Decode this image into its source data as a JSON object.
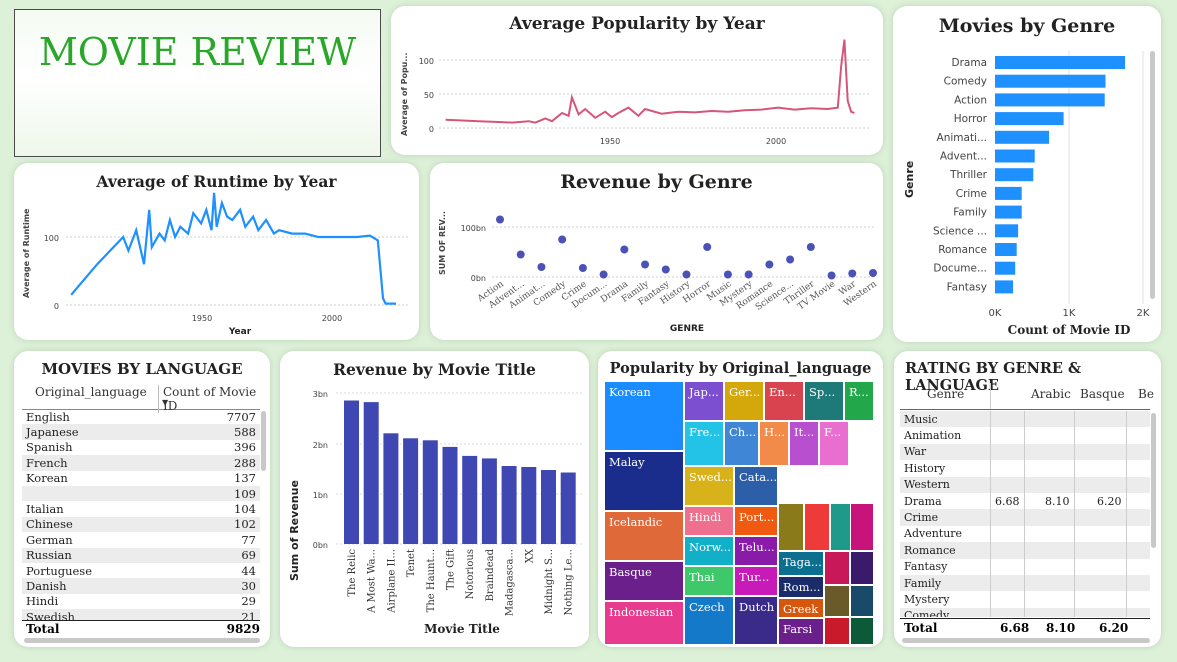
{
  "header": {
    "title": "MOVIE REVIEW"
  },
  "colors": {
    "accent_blue": "#1e90ff",
    "pop_line": "#d6557a",
    "dot": "#4a52b8",
    "bar_dark": "#3f48b2",
    "title_green": "#2aa62a"
  },
  "charts": {
    "popularity_year": {
      "type": "line",
      "title": "Average Popularity by Year",
      "ylabel": "Average of Popu...",
      "yticks": [
        "100",
        "50",
        "0"
      ],
      "xticks": [
        "1950",
        "2000"
      ],
      "chart_data": {
        "type": "line",
        "xlim": [
          1898,
          2028
        ],
        "ylim": [
          0,
          135
        ],
        "x": [
          1900,
          1905,
          1910,
          1915,
          1920,
          1925,
          1927,
          1930,
          1932,
          1935,
          1937,
          1938,
          1940,
          1942,
          1945,
          1948,
          1950,
          1952,
          1955,
          1958,
          1960,
          1965,
          1970,
          1975,
          1980,
          1985,
          1990,
          1995,
          2000,
          2005,
          2010,
          2015,
          2018,
          2019,
          2020,
          2021,
          2022,
          2023
        ],
        "y": [
          12,
          11,
          10,
          9,
          8,
          10,
          8,
          14,
          10,
          22,
          18,
          45,
          20,
          28,
          15,
          24,
          16,
          22,
          30,
          18,
          28,
          21,
          24,
          23,
          25,
          24,
          26,
          27,
          30,
          27,
          29,
          28,
          30,
          90,
          130,
          40,
          24,
          22
        ]
      }
    },
    "runtime_year": {
      "type": "line",
      "title": "Average of Runtime by Year",
      "ylabel": "Average of Runtime",
      "xlabel": "Year",
      "yticks": [
        "100",
        "0"
      ],
      "xticks": [
        "1950",
        "2000"
      ],
      "chart_data": {
        "type": "line",
        "xlim": [
          1898,
          2030
        ],
        "ylim": [
          0,
          170
        ],
        "x": [
          1900,
          1910,
          1920,
          1922,
          1925,
          1928,
          1930,
          1931,
          1934,
          1936,
          1938,
          1940,
          1942,
          1945,
          1947,
          1950,
          1952,
          1954,
          1955,
          1956,
          1958,
          1960,
          1962,
          1965,
          1967,
          1970,
          1972,
          1975,
          1978,
          1980,
          1985,
          1990,
          1995,
          2000,
          2005,
          2010,
          2015,
          2018,
          2020,
          2021,
          2022,
          2025
        ],
        "y": [
          15,
          60,
          100,
          80,
          110,
          60,
          140,
          85,
          105,
          95,
          125,
          100,
          115,
          105,
          135,
          120,
          140,
          110,
          165,
          115,
          150,
          130,
          125,
          140,
          115,
          130,
          110,
          125,
          105,
          110,
          105,
          105,
          100,
          100,
          100,
          100,
          102,
          95,
          10,
          2,
          2,
          2
        ]
      }
    },
    "revenue_genre": {
      "type": "scatter",
      "title": "Revenue by Genre",
      "ylabel": "SUM OF REV...",
      "xlabel": "GENRE",
      "yticks": [
        "100bn",
        "0bn"
      ],
      "chart_data": {
        "type": "scatter",
        "ylim": [
          0,
          120
        ],
        "categories": [
          "Action",
          "Advent...",
          "Animat...",
          "Comedy",
          "Crime",
          "Docum...",
          "Drama",
          "Family",
          "Fantasy",
          "History",
          "Horror",
          "Music",
          "Mystery",
          "Romance",
          "Science...",
          "Thriller",
          "TV Movie",
          "War",
          "Western"
        ],
        "values": [
          115,
          45,
          20,
          75,
          18,
          5,
          55,
          25,
          15,
          5,
          60,
          5,
          5,
          25,
          35,
          60,
          3,
          7,
          8
        ]
      }
    },
    "movies_genre": {
      "type": "bar",
      "title": "Movies by Genre",
      "ylabel": "Genre",
      "xlabel": "Count of Movie ID",
      "xticks": [
        "0K",
        "1K",
        "2K"
      ],
      "chart_data": {
        "type": "bar",
        "xlim": [
          0,
          2050
        ],
        "categories": [
          "Drama",
          "Comedy",
          "Action",
          "Horror",
          "Animati...",
          "Advent...",
          "Thriller",
          "Crime",
          "Family",
          "Science ...",
          "Romance",
          "Docume...",
          "Fantasy"
        ],
        "values": [
          1800,
          1530,
          1520,
          950,
          750,
          550,
          530,
          370,
          370,
          320,
          300,
          280,
          250
        ]
      }
    },
    "revenue_title": {
      "type": "bar",
      "title": "Revenue by Movie Title",
      "ylabel": "Sum of Revenue",
      "xlabel": "Movie Title",
      "yticks": [
        "3bn",
        "2bn",
        "1bn",
        "0bn"
      ],
      "chart_data": {
        "type": "bar",
        "ylim": [
          0,
          3
        ],
        "categories": [
          "The Relic",
          "A Most Wa...",
          "Airplane II...",
          "Tenet",
          "The Haunt...",
          "The Gift",
          "Notorious",
          "Braindead",
          "Madagasca...",
          "XX",
          "Midnight S...",
          "Nothing Le..."
        ],
        "values": [
          2.85,
          2.82,
          2.2,
          2.1,
          2.06,
          1.93,
          1.75,
          1.7,
          1.55,
          1.53,
          1.47,
          1.42
        ]
      }
    }
  },
  "language_table": {
    "title": "MOVIES BY LANGUAGE",
    "headers": [
      "Original_language",
      "Count of Movie ID"
    ],
    "rows": [
      [
        "English",
        "7707"
      ],
      [
        "Japanese",
        "588"
      ],
      [
        "Spanish",
        "396"
      ],
      [
        "French",
        "288"
      ],
      [
        "Korean",
        "137"
      ],
      [
        "",
        "109"
      ],
      [
        "Italian",
        "104"
      ],
      [
        "Chinese",
        "102"
      ],
      [
        "German",
        "77"
      ],
      [
        "Russian",
        "69"
      ],
      [
        "Portuguese",
        "44"
      ],
      [
        "Danish",
        "30"
      ],
      [
        "Hindi",
        "29"
      ],
      [
        "Swedish",
        "21"
      ]
    ],
    "total_label": "Total",
    "total_value": "9829"
  },
  "treemap": {
    "title": "Popularity by Original_language",
    "cells": [
      {
        "label": "Korean",
        "color": "#1a8cff"
      },
      {
        "label": "Jap...",
        "color": "#7b4fcf"
      },
      {
        "label": "Ger...",
        "color": "#d4a70a"
      },
      {
        "label": "En...",
        "color": "#d9434f"
      },
      {
        "label": "Sp...",
        "color": "#1e7a78"
      },
      {
        "label": "R...",
        "color": "#22a84a"
      },
      {
        "label": "Malay",
        "color": "#1a2d8c"
      },
      {
        "label": "Fre...",
        "color": "#22c3e6"
      },
      {
        "label": "Ch...",
        "color": "#3f86d6"
      },
      {
        "label": "H...",
        "color": "#f28b4a"
      },
      {
        "label": "It...",
        "color": "#b84fcf"
      },
      {
        "label": "F...",
        "color": "#e86fd0"
      },
      {
        "label": "Icelandic",
        "color": "#e0693a"
      },
      {
        "label": "Swed...",
        "color": "#d8b21a"
      },
      {
        "label": "Cata...",
        "color": "#2d5fa8"
      },
      {
        "label": "Hindi",
        "color": "#ef6f8f"
      },
      {
        "label": "Port...",
        "color": "#ef5a10"
      },
      {
        "label": "Basque",
        "color": "#6a1f8a"
      },
      {
        "label": "Norw...",
        "color": "#12b0c8"
      },
      {
        "label": "Telu...",
        "color": "#8a1aa8"
      },
      {
        "label": "Thai",
        "color": "#3ec86a"
      },
      {
        "label": "Tur...",
        "color": "#c71ab8"
      },
      {
        "label": "Indonesian",
        "color": "#e83a8f"
      },
      {
        "label": "Czech",
        "color": "#1479c8"
      },
      {
        "label": "Dutch",
        "color": "#3a2a8a"
      },
      {
        "label": "Taga...",
        "color": "#0d6f8f"
      },
      {
        "label": "Rom...",
        "color": "#1a2d6a"
      },
      {
        "label": "Greek",
        "color": "#d7560e"
      },
      {
        "label": "Farsi",
        "color": "#6a1f8a"
      },
      {
        "label": "",
        "color": "#8a7a1a"
      },
      {
        "label": "",
        "color": "#ef3a3a"
      },
      {
        "label": "",
        "color": "#1f9a8a"
      },
      {
        "label": "",
        "color": "#c8185a"
      },
      {
        "label": "",
        "color": "#c8147a"
      },
      {
        "label": "",
        "color": "#3a1a6a"
      },
      {
        "label": "",
        "color": "#6a5a2a"
      },
      {
        "label": "",
        "color": "#1a4a6a"
      },
      {
        "label": "",
        "color": "#c81a2a"
      },
      {
        "label": "",
        "color": "#0d5a3a"
      }
    ]
  },
  "rating_table": {
    "title": "RATING BY GENRE & LANGUAGE",
    "headers": [
      "Genre",
      "",
      "Arabic",
      "Basque",
      "Be"
    ],
    "rows": [
      [
        "Music",
        "",
        "",
        "",
        ""
      ],
      [
        "Animation",
        "",
        "",
        "",
        ""
      ],
      [
        "War",
        "",
        "",
        "",
        ""
      ],
      [
        "History",
        "",
        "",
        "",
        ""
      ],
      [
        "Western",
        "",
        "",
        "",
        ""
      ],
      [
        "Drama",
        "6.68",
        "8.10",
        "6.20",
        ""
      ],
      [
        "Crime",
        "",
        "",
        "",
        ""
      ],
      [
        "Adventure",
        "",
        "",
        "",
        ""
      ],
      [
        "Romance",
        "",
        "",
        "",
        ""
      ],
      [
        "Fantasy",
        "",
        "",
        "",
        ""
      ],
      [
        "Family",
        "",
        "",
        "",
        ""
      ],
      [
        "Mystery",
        "",
        "",
        "",
        ""
      ],
      [
        "Comedy",
        "",
        "",
        "",
        ""
      ]
    ],
    "total": [
      "Total",
      "6.68",
      "8.10",
      "6.20",
      ""
    ]
  }
}
